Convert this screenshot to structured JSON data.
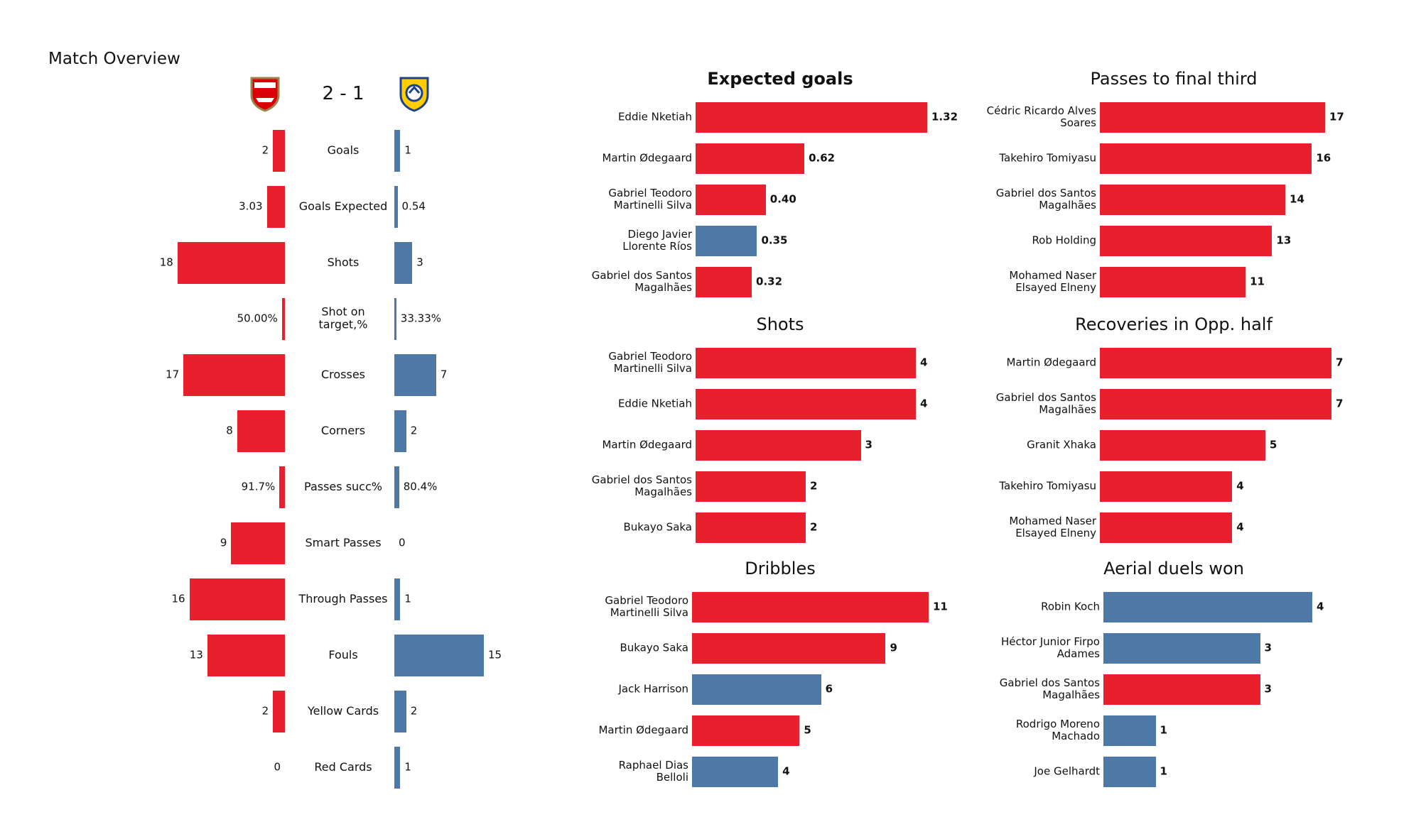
{
  "chart_data": [
    {
      "type": "butterfly",
      "title": "Match Overview",
      "score": "2 - 1",
      "categories": [
        "Goals",
        "Goals Expected",
        "Shots",
        "Shot on\ntarget,%",
        "Crosses",
        "Corners",
        "Passes succ%",
        "Smart Passes",
        "Through Passes",
        "Fouls",
        "Yellow Cards",
        "Red Cards"
      ],
      "series": [
        {
          "color": "#e8202d",
          "values": [
            2,
            3.03,
            18,
            50,
            17,
            8,
            91.7,
            9,
            16,
            13,
            2,
            0
          ],
          "value_labels": [
            "2",
            "3.03",
            "18",
            "50.00%",
            "17",
            "8",
            "91.7%",
            "9",
            "16",
            "13",
            "2",
            "0"
          ]
        },
        {
          "color": "#4e79a7",
          "values": [
            1,
            0.54,
            3,
            33.33,
            7,
            2,
            80.4,
            0,
            1,
            15,
            2,
            1
          ],
          "value_labels": [
            "1",
            "0.54",
            "3",
            "33.33%",
            "7",
            "2",
            "80.4%",
            "0",
            "1",
            "15",
            "2",
            "1"
          ]
        }
      ]
    },
    {
      "type": "barh",
      "title": "Expected goals",
      "categories": [
        "Eddie Nketiah",
        "Martin Ødegaard",
        "Gabriel Teodoro\nMartinelli Silva",
        "Diego Javier\nLlorente Ríos",
        "Gabriel dos Santos\nMagalhães"
      ],
      "values": [
        1.32,
        0.62,
        0.4,
        0.35,
        0.32
      ],
      "value_labels": [
        "1.32",
        "0.62",
        "0.40",
        "0.35",
        "0.32"
      ],
      "colors": [
        "#e8202d",
        "#e8202d",
        "#e8202d",
        "#4e79a7",
        "#e8202d"
      ]
    },
    {
      "type": "barh",
      "title": "Passes to final third",
      "categories": [
        "Cédric Ricardo Alves\nSoares",
        "Takehiro Tomiyasu",
        "Gabriel dos Santos\nMagalhães",
        "Rob Holding",
        "Mohamed Naser\nElsayed Elneny"
      ],
      "values": [
        17,
        16,
        14,
        13,
        11
      ],
      "colors": [
        "#e8202d",
        "#e8202d",
        "#e8202d",
        "#e8202d",
        "#e8202d"
      ]
    },
    {
      "type": "barh",
      "title": "Shots",
      "categories": [
        "Gabriel Teodoro\nMartinelli Silva",
        "Eddie Nketiah",
        "Martin Ødegaard",
        "Gabriel dos Santos\nMagalhães",
        "Bukayo Saka"
      ],
      "values": [
        4,
        4,
        3,
        2,
        2
      ],
      "colors": [
        "#e8202d",
        "#e8202d",
        "#e8202d",
        "#e8202d",
        "#e8202d"
      ]
    },
    {
      "type": "barh",
      "title": "Recoveries in Opp. half",
      "categories": [
        "Martin Ødegaard",
        "Gabriel dos Santos\nMagalhães",
        "Granit Xhaka",
        "Takehiro Tomiyasu",
        "Mohamed Naser\nElsayed Elneny"
      ],
      "values": [
        7,
        7,
        5,
        4,
        4
      ],
      "colors": [
        "#e8202d",
        "#e8202d",
        "#e8202d",
        "#e8202d",
        "#e8202d"
      ]
    },
    {
      "type": "barh",
      "title": "Dribbles",
      "categories": [
        "Gabriel Teodoro\nMartinelli Silva",
        "Bukayo Saka",
        "Jack Harrison",
        "Martin Ødegaard",
        "Raphael Dias\nBelloli"
      ],
      "values": [
        11,
        9,
        6,
        5,
        4
      ],
      "colors": [
        "#e8202d",
        "#e8202d",
        "#4e79a7",
        "#e8202d",
        "#4e79a7"
      ]
    },
    {
      "type": "barh",
      "title": "Aerial duels won",
      "categories": [
        "Robin Koch",
        "Héctor Junior Firpo\nAdames",
        "Gabriel dos Santos\nMagalhães",
        "Rodrigo Moreno\nMachado",
        "Joe Gelhardt"
      ],
      "values": [
        4,
        3,
        3,
        1,
        1
      ],
      "colors": [
        "#4e79a7",
        "#4e79a7",
        "#e8202d",
        "#4e79a7",
        "#4e79a7"
      ]
    }
  ]
}
